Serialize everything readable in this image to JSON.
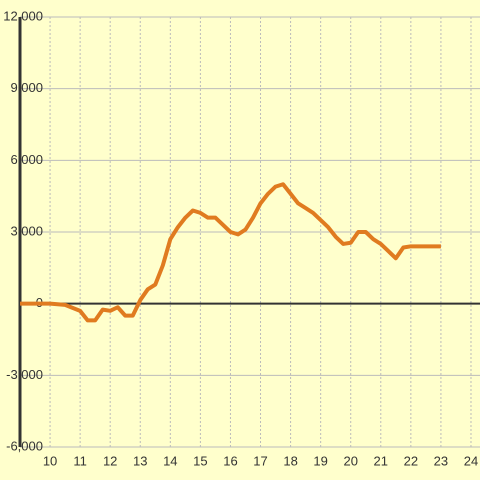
{
  "chart_data": {
    "type": "line",
    "x": [
      9,
      10,
      10.5,
      11,
      11.25,
      11.5,
      11.75,
      12,
      12.25,
      12.5,
      12.75,
      13,
      13.25,
      13.5,
      13.75,
      14,
      14.25,
      14.5,
      14.75,
      15,
      15.25,
      15.5,
      15.75,
      16,
      16.25,
      16.5,
      16.75,
      17,
      17.25,
      17.5,
      17.75,
      18,
      18.25,
      18.5,
      18.75,
      19,
      19.25,
      19.5,
      19.75,
      20,
      20.25,
      20.5,
      20.75,
      21,
      21.25,
      21.5,
      21.75,
      22,
      23
    ],
    "series": [
      {
        "color": "#e07b20",
        "values": [
          0,
          0,
          -50,
          -300,
          -700,
          -700,
          -250,
          -300,
          -150,
          -500,
          -500,
          150,
          600,
          800,
          1600,
          2700,
          3200,
          3600,
          3900,
          3800,
          3600,
          3600,
          3300,
          3000,
          2900,
          3100,
          3600,
          4200,
          4600,
          4900,
          5000,
          4600,
          4200,
          4000,
          3800,
          3500,
          3200,
          2800,
          2500,
          2550,
          3000,
          3000,
          2700,
          2500,
          2200,
          1900,
          2350,
          2400,
          2400
        ]
      }
    ],
    "xlim": [
      9,
      24.3
    ],
    "xticks": [
      10,
      11,
      12,
      13,
      14,
      15,
      16,
      17,
      18,
      19,
      20,
      21,
      22,
      23,
      24
    ],
    "ylim": [
      -6000,
      12000
    ],
    "yticks": [
      {
        "value": -6000,
        "label": "-6,000"
      },
      {
        "value": -3000,
        "label": "-3,000"
      },
      0,
      {
        "value": 3000,
        "label": "3,000"
      },
      {
        "value": 6000,
        "label": "6,000"
      },
      {
        "value": 9000,
        "label": "9,000"
      },
      {
        "value": 12000,
        "label": "12,000"
      }
    ],
    "grid": true
  }
}
